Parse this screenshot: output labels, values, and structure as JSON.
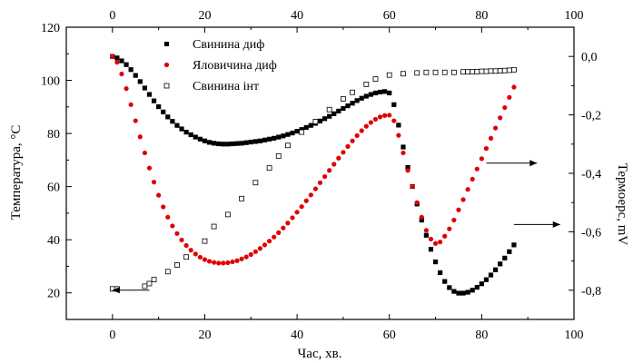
{
  "chart_data": {
    "type": "scatter",
    "xlabel": "Час, хв.",
    "ylabel_left": "Температура, °С",
    "ylabel_right": "Термоерс, mV",
    "xlim": [
      -10,
      100
    ],
    "ylim_left": [
      10,
      120
    ],
    "ylim_right": [
      -0.9,
      0.1
    ],
    "x_ticks": [
      "0",
      "20",
      "40",
      "60",
      "80",
      "100"
    ],
    "y_left_ticks": [
      "20",
      "40",
      "60",
      "80",
      "100",
      "120"
    ],
    "y_right_ticks": [
      "0,0",
      "-0,2",
      "-0,4",
      "-0,6",
      "-0,8"
    ],
    "x_tick_values": [
      0,
      20,
      40,
      60,
      80,
      100
    ],
    "y_left_tick_values": [
      20,
      40,
      60,
      80,
      100,
      120
    ],
    "y_right_tick_values": [
      0.0,
      -0.2,
      -0.4,
      -0.6,
      -0.8
    ],
    "legend_position": "top-center",
    "series": [
      {
        "name": "Свинина диф",
        "axis": "right",
        "marker": "filled-square",
        "color": "#000000",
        "x": [
          0,
          1,
          2,
          3,
          4,
          5,
          6,
          7,
          8,
          9,
          10,
          11,
          12,
          13,
          14,
          15,
          16,
          17,
          18,
          19,
          20,
          21,
          22,
          23,
          24,
          25,
          26,
          27,
          28,
          29,
          30,
          31,
          32,
          33,
          34,
          35,
          36,
          37,
          38,
          39,
          40,
          41,
          42,
          43,
          44,
          45,
          46,
          47,
          48,
          49,
          50,
          51,
          52,
          53,
          54,
          55,
          56,
          57,
          58,
          59,
          60,
          61,
          62,
          63,
          64,
          65,
          66,
          67,
          68,
          69,
          70,
          71,
          72,
          73,
          74,
          75,
          76,
          77,
          78,
          79,
          80,
          81,
          82,
          83,
          84,
          85,
          86,
          87
        ],
        "y": [
          0.0,
          -0.005,
          -0.015,
          -0.028,
          -0.045,
          -0.065,
          -0.086,
          -0.108,
          -0.13,
          -0.152,
          -0.172,
          -0.19,
          -0.207,
          -0.222,
          -0.236,
          -0.248,
          -0.259,
          -0.268,
          -0.276,
          -0.283,
          -0.289,
          -0.294,
          -0.297,
          -0.299,
          -0.3,
          -0.3,
          -0.299,
          -0.298,
          -0.297,
          -0.295,
          -0.293,
          -0.291,
          -0.289,
          -0.286,
          -0.283,
          -0.28,
          -0.276,
          -0.272,
          -0.267,
          -0.262,
          -0.256,
          -0.25,
          -0.243,
          -0.236,
          -0.229,
          -0.221,
          -0.213,
          -0.205,
          -0.196,
          -0.187,
          -0.178,
          -0.169,
          -0.16,
          -0.151,
          -0.143,
          -0.136,
          -0.13,
          -0.125,
          -0.122,
          -0.12,
          -0.125,
          -0.165,
          -0.235,
          -0.31,
          -0.38,
          -0.445,
          -0.505,
          -0.56,
          -0.612,
          -0.66,
          -0.703,
          -0.74,
          -0.77,
          -0.791,
          -0.804,
          -0.81,
          -0.81,
          -0.807,
          -0.8,
          -0.79,
          -0.778,
          -0.764,
          -0.748,
          -0.73,
          -0.71,
          -0.69,
          -0.668,
          -0.645
        ]
      },
      {
        "name": "Яловичина диф",
        "axis": "right",
        "marker": "filled-circle",
        "color": "#e00000",
        "x": [
          0,
          1,
          2,
          3,
          4,
          5,
          6,
          7,
          8,
          9,
          10,
          11,
          12,
          13,
          14,
          15,
          16,
          17,
          18,
          19,
          20,
          21,
          22,
          23,
          24,
          25,
          26,
          27,
          28,
          29,
          30,
          31,
          32,
          33,
          34,
          35,
          36,
          37,
          38,
          39,
          40,
          41,
          42,
          43,
          44,
          45,
          46,
          47,
          48,
          49,
          50,
          51,
          52,
          53,
          54,
          55,
          56,
          57,
          58,
          59,
          60,
          61,
          62,
          63,
          64,
          65,
          66,
          67,
          68,
          69,
          70,
          71,
          72,
          73,
          74,
          75,
          76,
          77,
          78,
          79,
          80,
          81,
          82,
          83,
          84,
          85,
          86,
          87
        ],
        "y": [
          0.0,
          -0.02,
          -0.06,
          -0.11,
          -0.165,
          -0.22,
          -0.275,
          -0.33,
          -0.382,
          -0.43,
          -0.475,
          -0.515,
          -0.55,
          -0.58,
          -0.606,
          -0.628,
          -0.647,
          -0.663,
          -0.676,
          -0.687,
          -0.695,
          -0.701,
          -0.705,
          -0.707,
          -0.707,
          -0.706,
          -0.703,
          -0.699,
          -0.693,
          -0.686,
          -0.678,
          -0.668,
          -0.657,
          -0.645,
          -0.632,
          -0.618,
          -0.603,
          -0.587,
          -0.57,
          -0.552,
          -0.533,
          -0.514,
          -0.494,
          -0.474,
          -0.453,
          -0.432,
          -0.411,
          -0.39,
          -0.369,
          -0.348,
          -0.328,
          -0.308,
          -0.289,
          -0.271,
          -0.254,
          -0.239,
          -0.226,
          -0.215,
          -0.207,
          -0.202,
          -0.201,
          -0.22,
          -0.27,
          -0.33,
          -0.39,
          -0.445,
          -0.5,
          -0.55,
          -0.595,
          -0.625,
          -0.64,
          -0.635,
          -0.615,
          -0.59,
          -0.56,
          -0.525,
          -0.49,
          -0.455,
          -0.42,
          -0.385,
          -0.35,
          -0.315,
          -0.28,
          -0.245,
          -0.21,
          -0.175,
          -0.14,
          -0.105
        ]
      },
      {
        "name": "Свинина інт",
        "axis": "left",
        "marker": "open-square",
        "color": "#000000",
        "x": [
          0,
          1,
          7,
          8,
          9,
          12,
          14,
          16,
          20,
          22,
          25,
          28,
          31,
          34,
          36,
          38,
          41,
          44,
          47,
          50,
          52,
          55,
          57,
          60,
          63,
          66,
          68,
          70,
          72,
          74,
          76,
          77,
          78,
          79,
          80,
          81,
          82,
          83,
          84,
          85,
          86,
          87
        ],
        "y": [
          21.5,
          21.5,
          22.5,
          23.5,
          25,
          28,
          30.5,
          33.5,
          39.5,
          45,
          49.5,
          55.5,
          61.5,
          67,
          71.5,
          75.5,
          80.5,
          84.5,
          89,
          93,
          95.5,
          98.5,
          100.5,
          102,
          102.5,
          102.8,
          103,
          103,
          103,
          103,
          103.2,
          103.2,
          103.3,
          103.3,
          103.4,
          103.4,
          103.5,
          103.5,
          103.6,
          103.7,
          103.8,
          104
        ]
      }
    ],
    "annotations": [
      {
        "type": "arrow",
        "direction": "left",
        "from": [
          8,
          21
        ],
        "to": [
          0,
          21
        ],
        "axis": "left"
      },
      {
        "type": "arrow",
        "direction": "right",
        "from": [
          81,
          -0.365
        ],
        "to": [
          92,
          -0.365
        ],
        "axis": "right"
      },
      {
        "type": "arrow",
        "direction": "right",
        "from": [
          87,
          -0.575
        ],
        "to": [
          97,
          -0.575
        ],
        "axis": "right"
      }
    ],
    "grid": false
  }
}
